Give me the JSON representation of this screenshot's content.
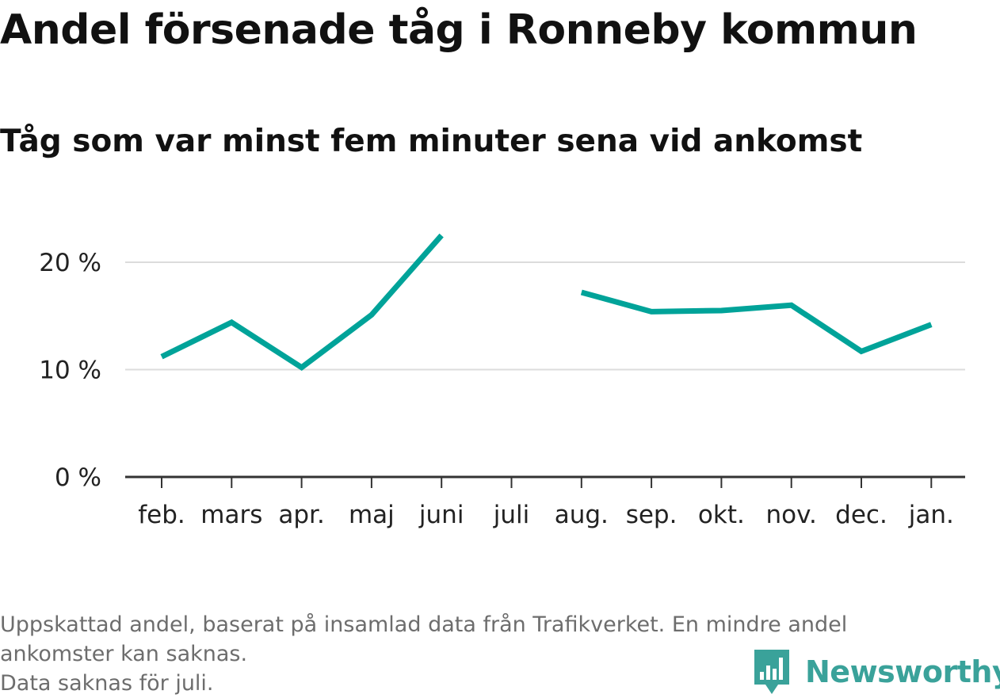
{
  "title": "Andel försenade tåg i Ronneby kommun",
  "subtitle": "Tåg som var minst fem minuter sena vid ankomst",
  "chart_data": {
    "type": "line",
    "categories": [
      "feb.",
      "mars",
      "apr.",
      "maj",
      "juni",
      "juli",
      "aug.",
      "sep.",
      "okt.",
      "nov.",
      "dec.",
      "jan."
    ],
    "series": [
      {
        "values": [
          11.2,
          14.4,
          10.2,
          15.1,
          22.5,
          null,
          17.2,
          15.4,
          15.5,
          16.0,
          11.7,
          14.2
        ]
      }
    ],
    "y_ticks": [
      {
        "value": 0,
        "label": "0 %"
      },
      {
        "value": 10,
        "label": "10 %"
      },
      {
        "value": 20,
        "label": "20 %"
      }
    ],
    "ylim": [
      0,
      20.8
    ],
    "line_color": "#00a399",
    "grid": true
  },
  "footnote": {
    "line1": "Uppskattad andel, baserat på insamlad data från Trafikverket. En mindre andel",
    "line2": "ankomster kan saknas.",
    "line3": "Data saknas för juli."
  },
  "brand": {
    "name": "Newsworthy",
    "icon": "bar-chart-logo-icon",
    "color": "#3aa29a"
  }
}
